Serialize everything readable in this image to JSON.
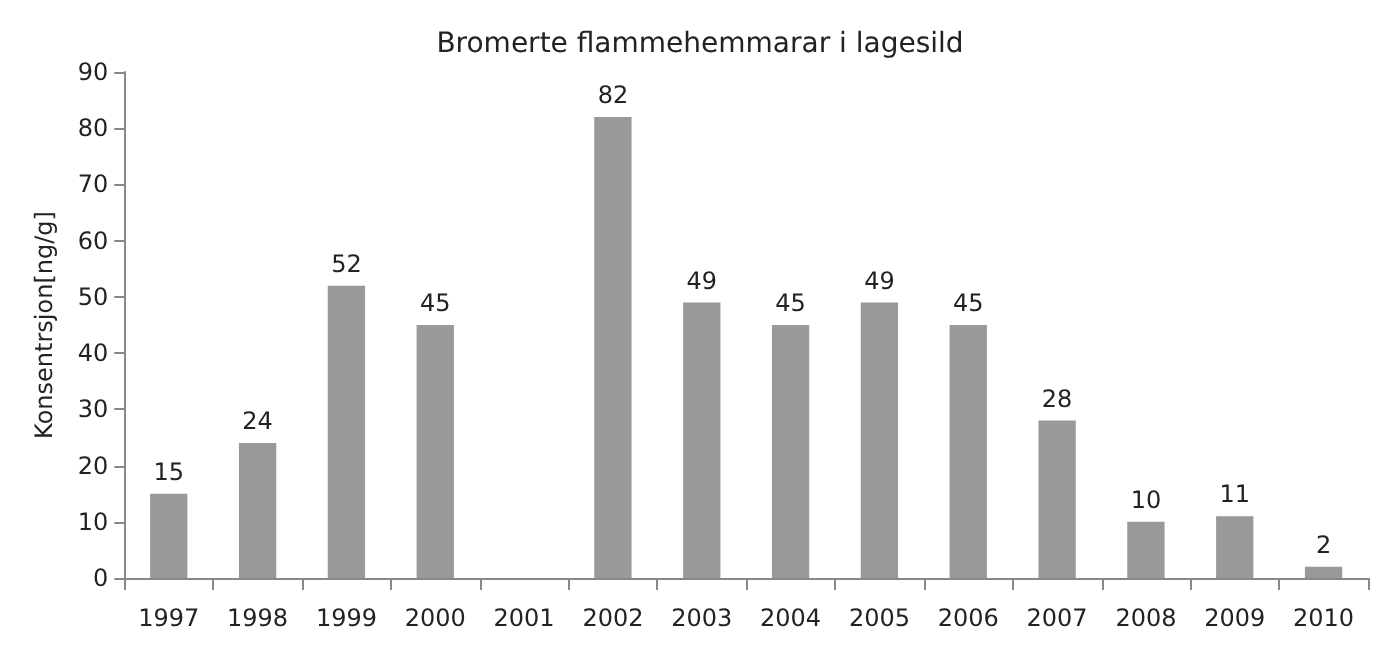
{
  "chart_data": {
    "type": "bar",
    "title": "Bromerte flammehemmarar i lagesild",
    "ylabel": "Konsentrsjon[ng/g]",
    "categories": [
      "1997",
      "1998",
      "1999",
      "2000",
      "2001",
      "2002",
      "2003",
      "2004",
      "2005",
      "2006",
      "2007",
      "2008",
      "2009",
      "2010"
    ],
    "values": [
      15,
      24,
      52,
      45,
      null,
      82,
      49,
      45,
      49,
      45,
      28,
      10,
      11,
      2
    ],
    "color": "#999999",
    "data_labels": true,
    "ylim": [
      0,
      90
    ],
    "yticks": [
      0,
      10,
      20,
      30,
      40,
      50,
      60,
      70,
      80,
      90
    ],
    "grid": false
  }
}
